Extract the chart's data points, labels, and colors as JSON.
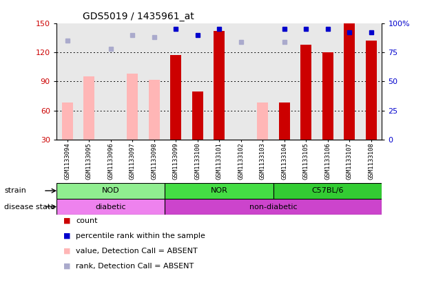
{
  "title": "GDS5019 / 1435961_at",
  "samples": [
    "GSM1133094",
    "GSM1133095",
    "GSM1133096",
    "GSM1133097",
    "GSM1133098",
    "GSM1133099",
    "GSM1133100",
    "GSM1133101",
    "GSM1133102",
    "GSM1133103",
    "GSM1133104",
    "GSM1133105",
    "GSM1133106",
    "GSM1133107",
    "GSM1133108"
  ],
  "count_values": [
    null,
    null,
    null,
    null,
    null,
    117,
    80,
    142,
    null,
    null,
    68,
    128,
    120,
    150,
    132
  ],
  "count_absent": [
    68,
    95,
    null,
    98,
    92,
    null,
    null,
    null,
    null,
    68,
    null,
    null,
    null,
    null,
    null
  ],
  "rank_values": [
    null,
    null,
    null,
    null,
    null,
    95,
    90,
    95,
    null,
    null,
    95,
    95,
    95,
    92,
    92
  ],
  "rank_absent": [
    85,
    null,
    78,
    90,
    88,
    null,
    null,
    null,
    84,
    null,
    84,
    null,
    null,
    null,
    null
  ],
  "ylim": [
    30,
    150
  ],
  "y2lim": [
    0,
    100
  ],
  "yticks": [
    30,
    60,
    90,
    120,
    150
  ],
  "y2ticks": [
    0,
    25,
    50,
    75,
    100
  ],
  "strain_groups": [
    {
      "label": "NOD",
      "start": 0,
      "end": 5,
      "color": "#90EE90"
    },
    {
      "label": "NOR",
      "start": 5,
      "end": 10,
      "color": "#44DD44"
    },
    {
      "label": "C57BL/6",
      "start": 10,
      "end": 15,
      "color": "#33CC33"
    }
  ],
  "disease_groups": [
    {
      "label": "diabetic",
      "start": 0,
      "end": 5,
      "color": "#EE82EE"
    },
    {
      "label": "non-diabetic",
      "start": 5,
      "end": 15,
      "color": "#CC44CC"
    }
  ],
  "count_color": "#cc0000",
  "count_absent_color": "#ffb6b6",
  "rank_color": "#0000cc",
  "rank_absent_color": "#aaaacc",
  "tick_label_color_left": "#cc0000",
  "tick_label_color_right": "#0000cc",
  "plot_bg": "#e8e8e8",
  "legend_items": [
    {
      "color": "#cc0000",
      "label": "count"
    },
    {
      "color": "#0000cc",
      "label": "percentile rank within the sample"
    },
    {
      "color": "#ffb6b6",
      "label": "value, Detection Call = ABSENT"
    },
    {
      "color": "#aaaacc",
      "label": "rank, Detection Call = ABSENT"
    }
  ]
}
